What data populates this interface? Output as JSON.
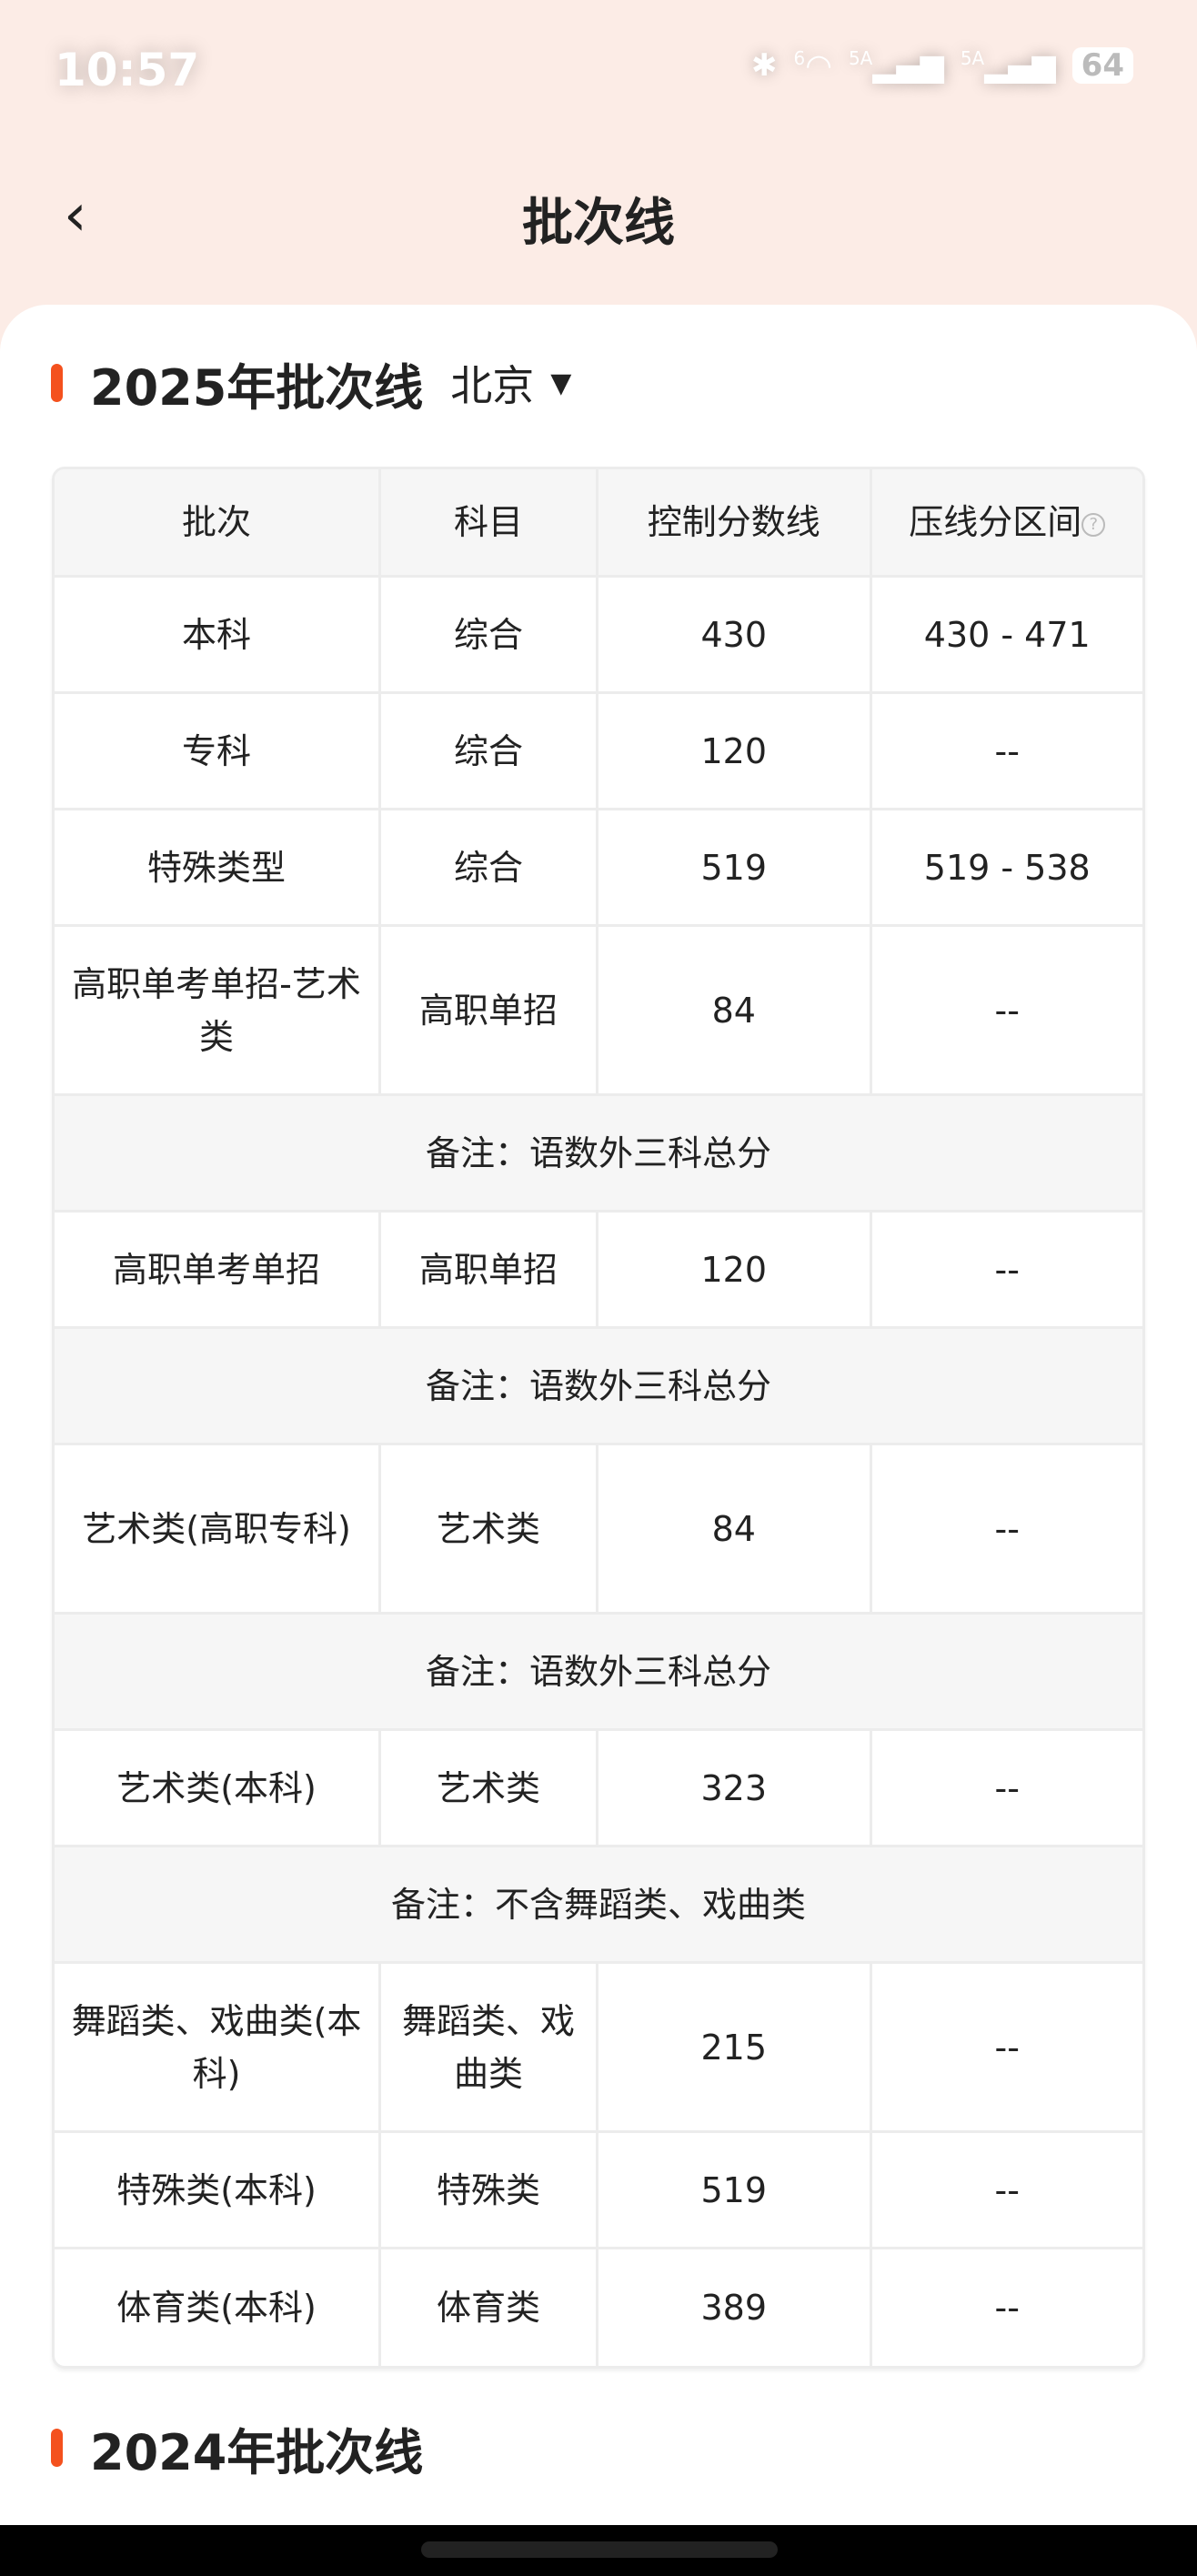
{
  "status_bar": {
    "time": "10:57",
    "icons": [
      "bluetooth-icon",
      "wifi-icon",
      "signal-5a-icon",
      "signal-5a-icon"
    ],
    "wifi_label": "6",
    "sim1": "5A",
    "sim2": "5A",
    "battery": "64"
  },
  "header": {
    "title": "批次线",
    "back_icon": "chevron-left-icon"
  },
  "section_2025": {
    "title": "2025年批次线",
    "province": "北京",
    "accent": "#f4511e"
  },
  "table": {
    "headers": [
      "批次",
      "科目",
      "控制分数线",
      "压线分区间"
    ],
    "rows": [
      {
        "type": "row",
        "cells": [
          "本科",
          "综合",
          "430",
          "430 - 471"
        ]
      },
      {
        "type": "row",
        "cells": [
          "专科",
          "综合",
          "120",
          "--"
        ]
      },
      {
        "type": "row",
        "cells": [
          "特殊类型",
          "综合",
          "519",
          "519 - 538"
        ]
      },
      {
        "type": "row2",
        "cells": [
          "高职单考单招-艺术类",
          "高职单招",
          "84",
          "--"
        ]
      },
      {
        "type": "note",
        "text": "备注：语数外三科总分"
      },
      {
        "type": "row",
        "cells": [
          "高职单考单招",
          "高职单招",
          "120",
          "--"
        ]
      },
      {
        "type": "note",
        "text": "备注：语数外三科总分"
      },
      {
        "type": "row2",
        "cells": [
          "艺术类(高职专科)",
          "艺术类",
          "84",
          "--"
        ]
      },
      {
        "type": "note",
        "text": "备注：语数外三科总分"
      },
      {
        "type": "row",
        "cells": [
          "艺术类(本科)",
          "艺术类",
          "323",
          "--"
        ]
      },
      {
        "type": "note",
        "text": "备注：不含舞蹈类、戏曲类"
      },
      {
        "type": "row2",
        "cells": [
          "舞蹈类、戏曲类(本科)",
          "舞蹈类、戏曲类",
          "215",
          "--"
        ]
      },
      {
        "type": "row",
        "cells": [
          "特殊类(本科)",
          "特殊类",
          "519",
          "--"
        ]
      },
      {
        "type": "row",
        "cells": [
          "体育类(本科)",
          "体育类",
          "389",
          "--"
        ]
      }
    ]
  },
  "section_2024": {
    "title": "2024年批次线"
  }
}
